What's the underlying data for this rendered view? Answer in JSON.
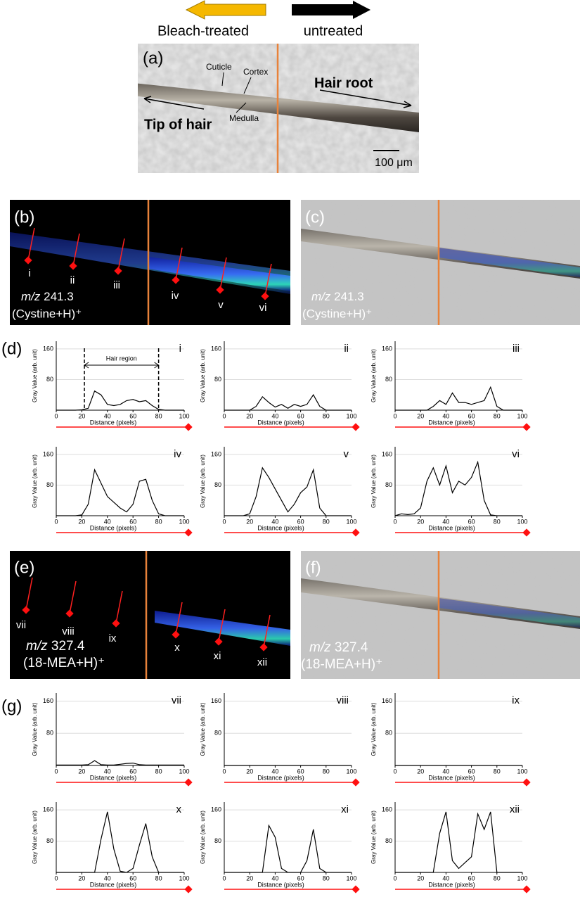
{
  "header": {
    "left_arrow_label": "Bleach-treated",
    "right_arrow_label": "untreated"
  },
  "panel_a": {
    "label": "(a)",
    "cuticle": "Cuticle",
    "cortex": "Cortex",
    "medulla": "Medulla",
    "hair_root": "Hair root",
    "tip": "Tip of hair",
    "scale_bar": "100 μm"
  },
  "panel_b": {
    "label": "(b)",
    "points": [
      "i",
      "ii",
      "iii",
      "iv",
      "v",
      "vi"
    ],
    "mz": "m/z",
    "mass": "241.3",
    "ion": "(Cystine+H)⁺"
  },
  "panel_c": {
    "label": "(c)",
    "mz": "m/z",
    "mass": "241.3",
    "ion": "(Cystine+H)⁺"
  },
  "panel_d": {
    "label": "(d)"
  },
  "panel_e": {
    "label": "(e)",
    "points": [
      "vii",
      "viii",
      "ix",
      "x",
      "xi",
      "xii"
    ],
    "mz": "m/z",
    "mass": "327.4",
    "ion": "(18-MEA+H)⁺"
  },
  "panel_f": {
    "label": "(f)",
    "mz": "m/z",
    "mass": "327.4",
    "ion": "(18-MEA+H)⁺"
  },
  "panel_g": {
    "label": "(g)"
  },
  "chart_data": [
    {
      "type": "line",
      "label": "i",
      "xlabel": "Distance (pixels)",
      "ylabel": "Gray Value (arb. unit)",
      "x": [
        0,
        5,
        10,
        15,
        20,
        25,
        30,
        35,
        40,
        45,
        50,
        55,
        60,
        65,
        70,
        75,
        80,
        85,
        90,
        95,
        100
      ],
      "values": [
        0,
        0,
        0,
        0,
        1,
        5,
        50,
        40,
        15,
        12,
        15,
        25,
        28,
        22,
        25,
        12,
        2,
        0,
        0,
        0,
        0
      ],
      "color": "#000000",
      "xlim": [
        0,
        100
      ],
      "ylim": [
        0,
        180
      ],
      "xticks": [
        0,
        20,
        40,
        60,
        80,
        100
      ],
      "yticks": [
        80,
        160
      ],
      "grid": true,
      "annotation": {
        "text": "Hair region",
        "x": [
          22,
          80
        ]
      }
    },
    {
      "type": "line",
      "label": "ii",
      "xlabel": "Distance (pixels)",
      "ylabel": "Gray Value (arb. unit)",
      "x": [
        0,
        5,
        10,
        15,
        20,
        25,
        30,
        35,
        40,
        45,
        50,
        55,
        60,
        65,
        70,
        75,
        80,
        85,
        90,
        95,
        100
      ],
      "values": [
        0,
        0,
        0,
        0,
        0,
        10,
        35,
        20,
        8,
        15,
        5,
        15,
        10,
        15,
        40,
        10,
        0,
        0,
        0,
        0,
        0
      ],
      "color": "#000000",
      "xlim": [
        0,
        100
      ],
      "ylim": [
        0,
        180
      ],
      "xticks": [
        0,
        20,
        40,
        60,
        80,
        100
      ],
      "yticks": [
        80,
        160
      ],
      "grid": true
    },
    {
      "type": "line",
      "label": "iii",
      "xlabel": "Distance (pixels)",
      "ylabel": "Gray Value (arb. unit)",
      "x": [
        0,
        5,
        10,
        15,
        20,
        25,
        30,
        35,
        40,
        45,
        50,
        55,
        60,
        65,
        70,
        75,
        80,
        85,
        90,
        95,
        100
      ],
      "values": [
        0,
        0,
        0,
        0,
        0,
        0,
        10,
        25,
        15,
        45,
        20,
        20,
        15,
        20,
        25,
        60,
        10,
        0,
        0,
        0,
        0
      ],
      "color": "#000000",
      "xlim": [
        0,
        100
      ],
      "ylim": [
        0,
        180
      ],
      "xticks": [
        0,
        20,
        40,
        60,
        80,
        100
      ],
      "yticks": [
        80,
        160
      ],
      "grid": true
    },
    {
      "type": "line",
      "label": "iv",
      "xlabel": "Distance (pixels)",
      "ylabel": "Gray Value (arb. unit)",
      "x": [
        0,
        5,
        10,
        15,
        20,
        25,
        30,
        35,
        40,
        45,
        50,
        55,
        60,
        65,
        70,
        75,
        80,
        85,
        90,
        95,
        100
      ],
      "values": [
        0,
        0,
        0,
        0,
        2,
        30,
        120,
        85,
        50,
        35,
        20,
        10,
        30,
        90,
        95,
        40,
        5,
        0,
        0,
        0,
        0
      ],
      "color": "#000000",
      "xlim": [
        0,
        100
      ],
      "ylim": [
        0,
        180
      ],
      "xticks": [
        0,
        20,
        40,
        60,
        80,
        100
      ],
      "yticks": [
        80,
        160
      ],
      "grid": true
    },
    {
      "type": "line",
      "label": "v",
      "xlabel": "Distance (pixels)",
      "ylabel": "Gray Value (arb. unit)",
      "x": [
        0,
        5,
        10,
        15,
        20,
        25,
        30,
        35,
        40,
        45,
        50,
        55,
        60,
        65,
        70,
        75,
        80,
        85,
        90,
        95,
        100
      ],
      "values": [
        0,
        0,
        0,
        0,
        5,
        50,
        125,
        100,
        70,
        40,
        10,
        30,
        60,
        75,
        120,
        20,
        0,
        0,
        0,
        0,
        0
      ],
      "color": "#000000",
      "xlim": [
        0,
        100
      ],
      "ylim": [
        0,
        180
      ],
      "xticks": [
        0,
        20,
        40,
        60,
        80,
        100
      ],
      "yticks": [
        80,
        160
      ],
      "grid": true
    },
    {
      "type": "line",
      "label": "vi",
      "xlabel": "Distance (pixels)",
      "ylabel": "Gray Value (arb. unit)",
      "x": [
        0,
        5,
        10,
        15,
        20,
        25,
        30,
        35,
        40,
        45,
        50,
        55,
        60,
        65,
        70,
        75,
        80,
        85,
        90,
        95,
        100
      ],
      "values": [
        0,
        5,
        3,
        5,
        20,
        90,
        125,
        80,
        130,
        60,
        90,
        80,
        100,
        140,
        40,
        2,
        0,
        0,
        0,
        0,
        0
      ],
      "color": "#000000",
      "xlim": [
        0,
        100
      ],
      "ylim": [
        0,
        180
      ],
      "xticks": [
        0,
        20,
        40,
        60,
        80,
        100
      ],
      "yticks": [
        80,
        160
      ],
      "grid": true
    },
    {
      "type": "line",
      "label": "vii",
      "xlabel": "Distance (pixels)",
      "ylabel": "Gray Value (arb. unit)",
      "x": [
        0,
        5,
        10,
        15,
        20,
        25,
        30,
        35,
        40,
        45,
        50,
        55,
        60,
        65,
        70,
        75,
        80,
        85,
        90,
        95,
        100
      ],
      "values": [
        1,
        1,
        1,
        1,
        1,
        2,
        12,
        2,
        1,
        1,
        3,
        5,
        6,
        2,
        1,
        1,
        1,
        1,
        1,
        1,
        1
      ],
      "color": "#000000",
      "xlim": [
        0,
        100
      ],
      "ylim": [
        0,
        180
      ],
      "xticks": [
        0,
        20,
        40,
        60,
        80,
        100
      ],
      "yticks": [
        80,
        160
      ],
      "grid": true
    },
    {
      "type": "line",
      "label": "viii",
      "xlabel": "Distance (pixels)",
      "ylabel": "Gray Value (arb. unit)",
      "x": [
        0,
        5,
        10,
        15,
        20,
        25,
        30,
        35,
        40,
        45,
        50,
        55,
        60,
        65,
        70,
        75,
        80,
        85,
        90,
        95,
        100
      ],
      "values": [
        0,
        0,
        0,
        0,
        0,
        0,
        0,
        0,
        0,
        0,
        0,
        0,
        0,
        0,
        0,
        0,
        0,
        0,
        0,
        0,
        0
      ],
      "color": "#000000",
      "xlim": [
        0,
        100
      ],
      "ylim": [
        0,
        180
      ],
      "xticks": [
        0,
        20,
        40,
        60,
        80,
        100
      ],
      "yticks": [
        80,
        160
      ],
      "grid": true
    },
    {
      "type": "line",
      "label": "ix",
      "xlabel": "Distance (pixels)",
      "ylabel": "Gray Value (arb. unit)",
      "x": [
        0,
        5,
        10,
        15,
        20,
        25,
        30,
        35,
        40,
        45,
        50,
        55,
        60,
        65,
        70,
        75,
        80,
        85,
        90,
        95,
        100
      ],
      "values": [
        0,
        0,
        0,
        0,
        0,
        0,
        0,
        0,
        0,
        0,
        0,
        0,
        0,
        0,
        0,
        0,
        0,
        0,
        0,
        0,
        0
      ],
      "color": "#000000",
      "xlim": [
        0,
        100
      ],
      "ylim": [
        0,
        180
      ],
      "xticks": [
        0,
        20,
        40,
        60,
        80,
        100
      ],
      "yticks": [
        80,
        160
      ],
      "grid": true
    },
    {
      "type": "line",
      "label": "x",
      "xlabel": "Distance (pixels)",
      "ylabel": "Gray Value (arb. unit)",
      "x": [
        0,
        5,
        10,
        15,
        20,
        25,
        30,
        35,
        40,
        45,
        50,
        55,
        60,
        65,
        70,
        75,
        80,
        85,
        90,
        95,
        100
      ],
      "values": [
        0,
        0,
        0,
        0,
        0,
        0,
        0,
        85,
        155,
        60,
        3,
        0,
        10,
        70,
        125,
        40,
        0,
        0,
        0,
        0,
        0
      ],
      "color": "#000000",
      "xlim": [
        0,
        100
      ],
      "ylim": [
        0,
        180
      ],
      "xticks": [
        0,
        20,
        40,
        60,
        80,
        100
      ],
      "yticks": [
        80,
        160
      ],
      "grid": true
    },
    {
      "type": "line",
      "label": "xi",
      "xlabel": "Distance (pixels)",
      "ylabel": "Gray Value (arb. unit)",
      "x": [
        0,
        5,
        10,
        15,
        20,
        25,
        30,
        35,
        40,
        45,
        50,
        55,
        60,
        65,
        70,
        75,
        80,
        85,
        90,
        95,
        100
      ],
      "values": [
        0,
        0,
        0,
        0,
        0,
        0,
        0,
        120,
        90,
        10,
        0,
        0,
        0,
        30,
        110,
        10,
        0,
        0,
        0,
        0,
        0
      ],
      "color": "#000000",
      "xlim": [
        0,
        100
      ],
      "ylim": [
        0,
        180
      ],
      "xticks": [
        0,
        20,
        40,
        60,
        80,
        100
      ],
      "yticks": [
        80,
        160
      ],
      "grid": true
    },
    {
      "type": "line",
      "label": "xii",
      "xlabel": "Distance (pixels)",
      "ylabel": "Gray Value (arb. unit)",
      "x": [
        0,
        5,
        10,
        15,
        20,
        25,
        30,
        35,
        40,
        45,
        50,
        55,
        60,
        65,
        70,
        75,
        80,
        85,
        90,
        95,
        100
      ],
      "values": [
        0,
        0,
        0,
        0,
        0,
        0,
        0,
        100,
        155,
        30,
        10,
        25,
        40,
        150,
        110,
        155,
        0,
        0,
        0,
        0,
        0
      ],
      "color": "#000000",
      "xlim": [
        0,
        100
      ],
      "ylim": [
        0,
        180
      ],
      "xticks": [
        0,
        20,
        40,
        60,
        80,
        100
      ],
      "yticks": [
        80,
        160
      ],
      "grid": true
    }
  ]
}
